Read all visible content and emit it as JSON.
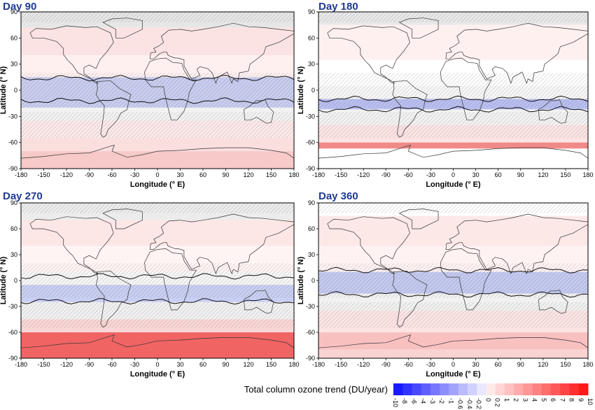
{
  "figure": {
    "colorbar_title": "Total column ozone trend (DU/year)"
  },
  "panels": [
    {
      "title": "Day 90"
    },
    {
      "title": "Day 180"
    },
    {
      "title": "Day 270"
    },
    {
      "title": "Day 360"
    }
  ],
  "axes": {
    "xlabel": "Longitude (° E)",
    "ylabel": "Latitude (° N)",
    "x_ticks": [
      "-180",
      "-150",
      "-120",
      "-90",
      "-60",
      "-30",
      "0",
      "30",
      "60",
      "90",
      "120",
      "150",
      "180"
    ],
    "y_ticks": [
      "90",
      "60",
      "30",
      "0",
      "-30",
      "-60",
      "-90"
    ]
  },
  "colorbar": {
    "labels": [
      "-10",
      "-8",
      "-6",
      "-4",
      "-3",
      "-2",
      "-1",
      "-0.6",
      "-0.4",
      "-0.2",
      "0",
      "0.2",
      "1",
      "2",
      "3",
      "4",
      "5",
      "6",
      "7",
      "8",
      "9",
      "10"
    ]
  },
  "colors": {
    "title": "#1f3a93",
    "negative_strong": "#1a1aff",
    "positive_strong": "#ff1a1a",
    "zero": "#ffffff"
  }
}
